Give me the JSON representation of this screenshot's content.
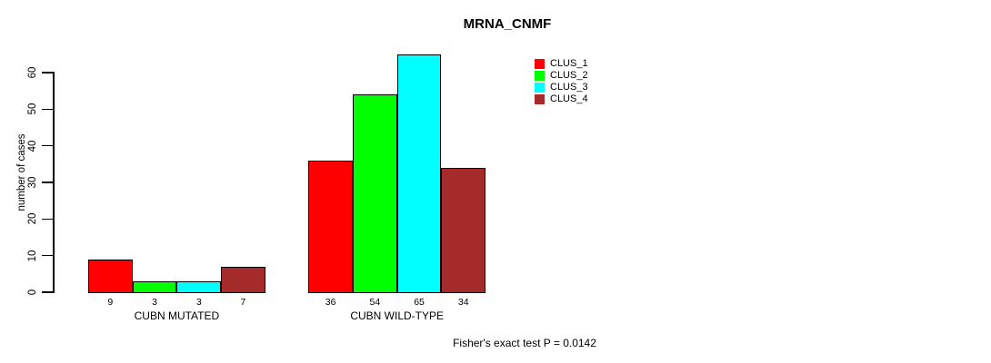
{
  "title": "MRNA_CNMF",
  "chart_data": {
    "type": "bar",
    "grouped": true,
    "title": "MRNA_CNMF",
    "xlabel": "",
    "ylabel": "number of cases",
    "categories": [
      "CUBN MUTATED",
      "CUBN WILD-TYPE"
    ],
    "series": [
      {
        "name": "CLUS_1",
        "color": "#ff0000",
        "values": [
          9,
          36
        ]
      },
      {
        "name": "CLUS_2",
        "color": "#00ff00",
        "values": [
          3,
          54
        ]
      },
      {
        "name": "CLUS_3",
        "color": "#00ffff",
        "values": [
          3,
          65
        ]
      },
      {
        "name": "CLUS_4",
        "color": "#a52a2a",
        "values": [
          7,
          34
        ]
      }
    ],
    "yticks": [
      0,
      10,
      20,
      30,
      40,
      50,
      60
    ],
    "ylim": [
      0,
      65
    ],
    "grid": false,
    "bar_border_color": "#000000",
    "legend": {
      "position": "top-right",
      "entries": [
        "CLUS_1",
        "CLUS_2",
        "CLUS_3",
        "CLUS_4"
      ]
    }
  },
  "footer": {
    "note": "Fisher's exact test P = 0.0142"
  }
}
